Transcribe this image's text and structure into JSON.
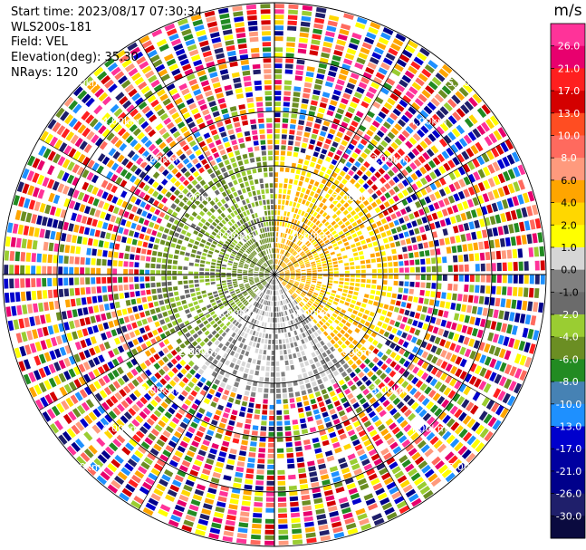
{
  "header": {
    "start_time": "Start time: 2023/08/17 07:30:34",
    "instrument": "WLS200s-181",
    "field": "Field: VEL",
    "elevation": "Elevation(deg): 35.30",
    "nrays": "NRays: 120"
  },
  "chart_data": {
    "type": "heatmap",
    "projection": "polar-ppi",
    "field": "VEL",
    "units": "m/s",
    "nrays": 120,
    "elevation_deg": 35.3,
    "range_rings_km": [
      1.0,
      2.0,
      3.0,
      4.0,
      5.0
    ],
    "range_ring_labels": [
      "1.00km",
      "1.00km",
      "1.00km",
      "1.00km",
      "2.00km",
      "2.00km",
      "2.00km",
      "2.00km",
      "3.00km",
      "3.00km",
      "3.00km",
      "3.00km",
      "4.00km",
      "4.00km",
      "4.00km",
      "4.00km",
      "5.00km",
      "5.00km",
      "5.00km",
      "5.00km"
    ],
    "colorbar": {
      "label": "m/s",
      "ticks": [
        "26.0",
        "21.0",
        "17.0",
        "13.0",
        "10.0",
        "8.0",
        "6.0",
        "4.0",
        "2.0",
        "1.0",
        "0.0",
        "-1.0",
        "-2.0",
        "-4.0",
        "-6.0",
        "-8.0",
        "-10.0",
        "-13.0",
        "-17.0",
        "-21.0",
        "-26.0",
        "-30.0"
      ],
      "colors": [
        "#ff3399",
        "#e8006e",
        "#ff1f1f",
        "#d40000",
        "#ff4d22",
        "#ff6a5e",
        "#ff9a7d",
        "#ffa500",
        "#ffd700",
        "#ffff00",
        "#d6d6d6",
        "#808080",
        "#6b6b6b",
        "#9acd32",
        "#6b8e23",
        "#228b22",
        "#4682b4",
        "#1e90ff",
        "#0000cd",
        "#0000a0",
        "#00008b",
        "#1f1f6b",
        "#0a0a3f"
      ]
    },
    "regions": [
      {
        "from_az": 0,
        "to_az": 140,
        "max_km": 2.3,
        "description": "positive (yellow/orange)",
        "value_range": [
          1,
          6
        ]
      },
      {
        "from_az": 140,
        "to_az": 220,
        "max_km": 1.3,
        "description": "near-zero (grey)",
        "value_range": [
          -1,
          1
        ]
      },
      {
        "from_az": 220,
        "to_az": 360,
        "max_km": 2.3,
        "description": "negative (green)",
        "value_range": [
          -6,
          -1
        ]
      },
      {
        "from_km": 2.3,
        "to_km": 5.0,
        "description": "noise / random values",
        "value_range": [
          -30,
          26
        ]
      }
    ]
  }
}
